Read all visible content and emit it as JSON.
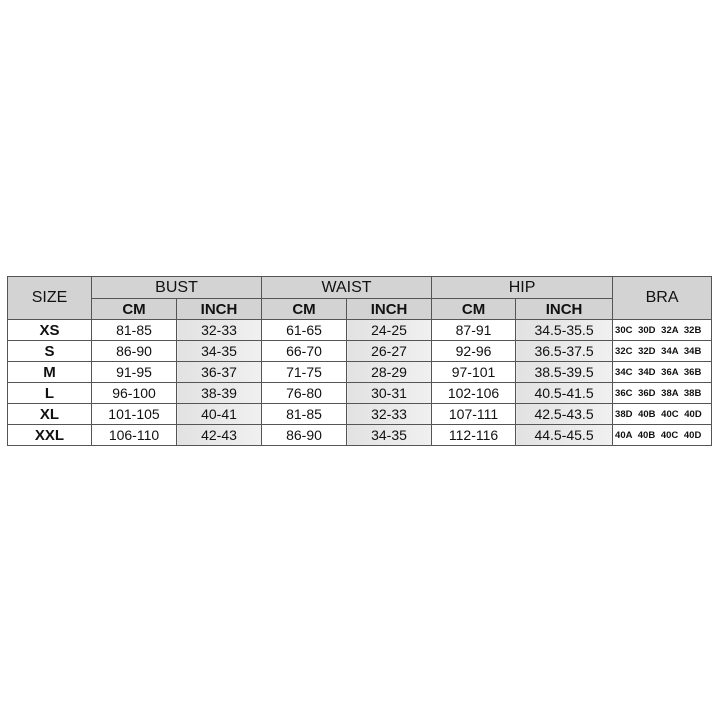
{
  "headers": {
    "size": "SIZE",
    "bust": "BUST",
    "waist": "WAIST",
    "hip": "HIP",
    "bra": "BRA",
    "cm": "CM",
    "inch": "INCH"
  },
  "rows": [
    {
      "size": "XS",
      "bust_cm": "81-85",
      "bust_inch": "32-33",
      "waist_cm": "61-65",
      "waist_inch": "24-25",
      "hip_cm": "87-91",
      "hip_inch": "34.5-35.5",
      "bra": "30C 30D 32A 32B"
    },
    {
      "size": "S",
      "bust_cm": "86-90",
      "bust_inch": "34-35",
      "waist_cm": "66-70",
      "waist_inch": "26-27",
      "hip_cm": "92-96",
      "hip_inch": "36.5-37.5",
      "bra": "32C 32D 34A 34B"
    },
    {
      "size": "M",
      "bust_cm": "91-95",
      "bust_inch": "36-37",
      "waist_cm": "71-75",
      "waist_inch": "28-29",
      "hip_cm": "97-101",
      "hip_inch": "38.5-39.5",
      "bra": "34C 34D 36A 36B"
    },
    {
      "size": "L",
      "bust_cm": "96-100",
      "bust_inch": "38-39",
      "waist_cm": "76-80",
      "waist_inch": "30-31",
      "hip_cm": "102-106",
      "hip_inch": "40.5-41.5",
      "bra": "36C 36D 38A 38B"
    },
    {
      "size": "XL",
      "bust_cm": "101-105",
      "bust_inch": "40-41",
      "waist_cm": "81-85",
      "waist_inch": "32-33",
      "hip_cm": "107-111",
      "hip_inch": "42.5-43.5",
      "bra": "38D 40B 40C 40D"
    },
    {
      "size": "XXL",
      "bust_cm": "106-110",
      "bust_inch": "42-43",
      "waist_cm": "86-90",
      "waist_inch": "34-35",
      "hip_cm": "112-116",
      "hip_inch": "44.5-45.5",
      "bra": "40A 40B 40C 40D"
    }
  ]
}
